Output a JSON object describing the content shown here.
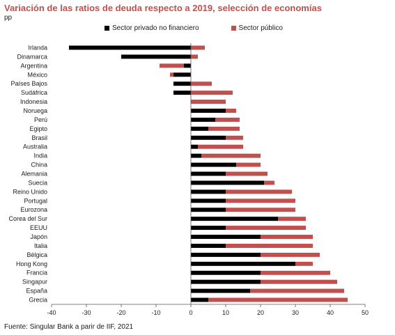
{
  "header": {
    "title": "Variación de las ratios de deuda respecto a 2019, selección de economías",
    "unit": "pp"
  },
  "footer": {
    "source": "Fuente: Singular Bank a parir de IIF, 2021"
  },
  "colors": {
    "private": "#000000",
    "public": "#c0504d",
    "title": "#c0504d"
  },
  "chart_data": {
    "type": "bar",
    "orientation": "horizontal",
    "stacked": true,
    "title": "Variación de las ratios de deuda respecto a 2019, selección de economías",
    "unit": "pp",
    "legend_position": "top",
    "grid": false,
    "xlim": [
      -40,
      50
    ],
    "xticks": [
      -40,
      -30,
      -20,
      -10,
      0,
      10,
      20,
      30,
      40,
      50
    ],
    "categories": [
      "Irlanda",
      "Dinamarca",
      "Argentina",
      "México",
      "Países Bajos",
      "Sudáfrica",
      "Indonesia",
      "Noruega",
      "Perú",
      "Egipto",
      "Brasil",
      "Australia",
      "India",
      "China",
      "Alemania",
      "Suecia",
      "Reino Unido",
      "Portugal",
      "Eurozona",
      "Corea del Sur",
      "EEUU",
      "Japón",
      "Italia",
      "Bélgica",
      "Hong Kong",
      "Francia",
      "Singapur",
      "España",
      "Grecia"
    ],
    "series": [
      {
        "name": "Sector privado no financiero",
        "color": "#000000",
        "values": [
          -35,
          -20,
          -2,
          -5,
          -5,
          -5,
          0,
          10,
          7,
          5,
          10,
          2,
          3,
          13,
          10,
          21,
          10,
          10,
          10,
          25,
          10,
          20,
          10,
          20,
          30,
          20,
          20,
          17,
          5
        ]
      },
      {
        "name": "Sector público",
        "color": "#c0504d",
        "values": [
          4,
          2,
          -7,
          -1,
          6,
          12,
          10,
          3,
          7,
          9,
          5,
          13,
          17,
          7,
          12,
          3,
          19,
          20,
          20,
          8,
          23,
          15,
          25,
          17,
          5,
          20,
          22,
          27,
          40
        ]
      }
    ]
  }
}
